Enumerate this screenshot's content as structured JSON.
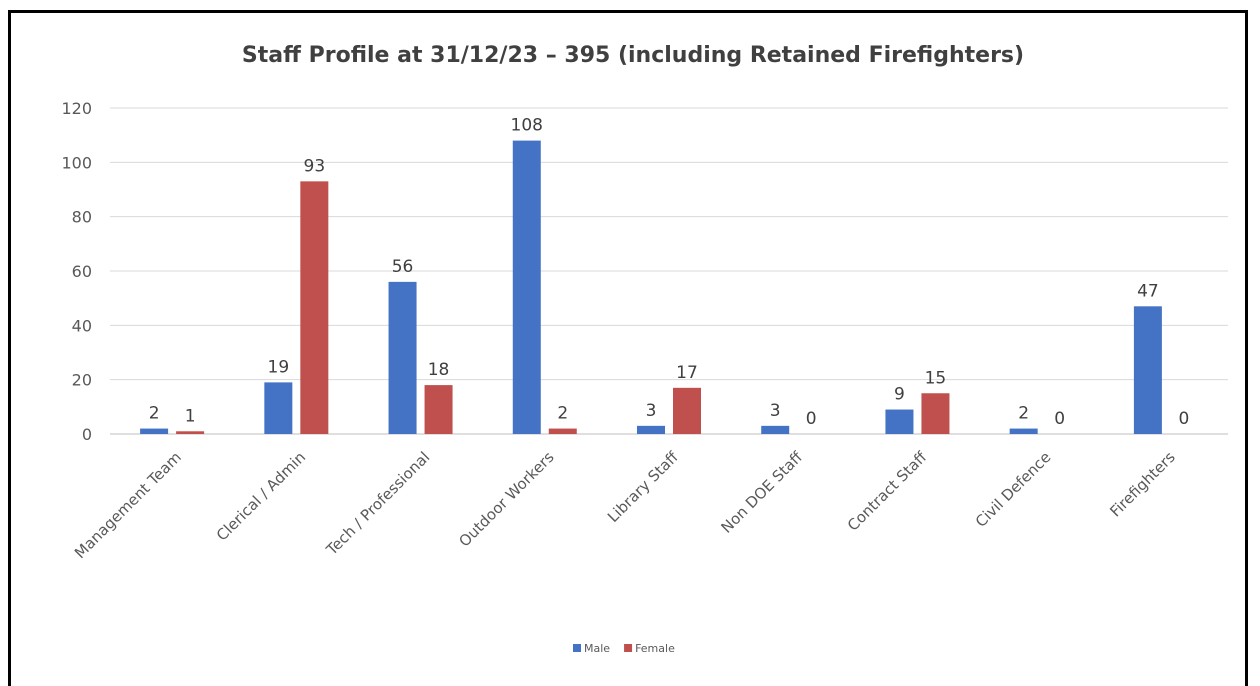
{
  "chart_data": {
    "type": "bar",
    "title": "Staff Profile at 31/12/23 – 395 (including Retained Firefighters)",
    "categories": [
      "Management Team",
      "Clerical / Admin",
      "Tech / Professional",
      "Outdoor Workers",
      "Library Staff",
      "Non DOE Staff",
      "Contract Staff",
      "Civil Defence",
      "Firefighters"
    ],
    "series": [
      {
        "name": "Male",
        "color": "#4472c4",
        "values": [
          2,
          19,
          56,
          108,
          3,
          3,
          9,
          2,
          47
        ]
      },
      {
        "name": "Female",
        "color": "#c0504d",
        "values": [
          1,
          93,
          18,
          2,
          17,
          0,
          15,
          0,
          0
        ]
      }
    ],
    "ylim": [
      0,
      120
    ],
    "yticks": [
      0,
      20,
      40,
      60,
      80,
      100,
      120
    ],
    "grid": true,
    "legend": "bottom",
    "xlabel": "",
    "ylabel": ""
  }
}
